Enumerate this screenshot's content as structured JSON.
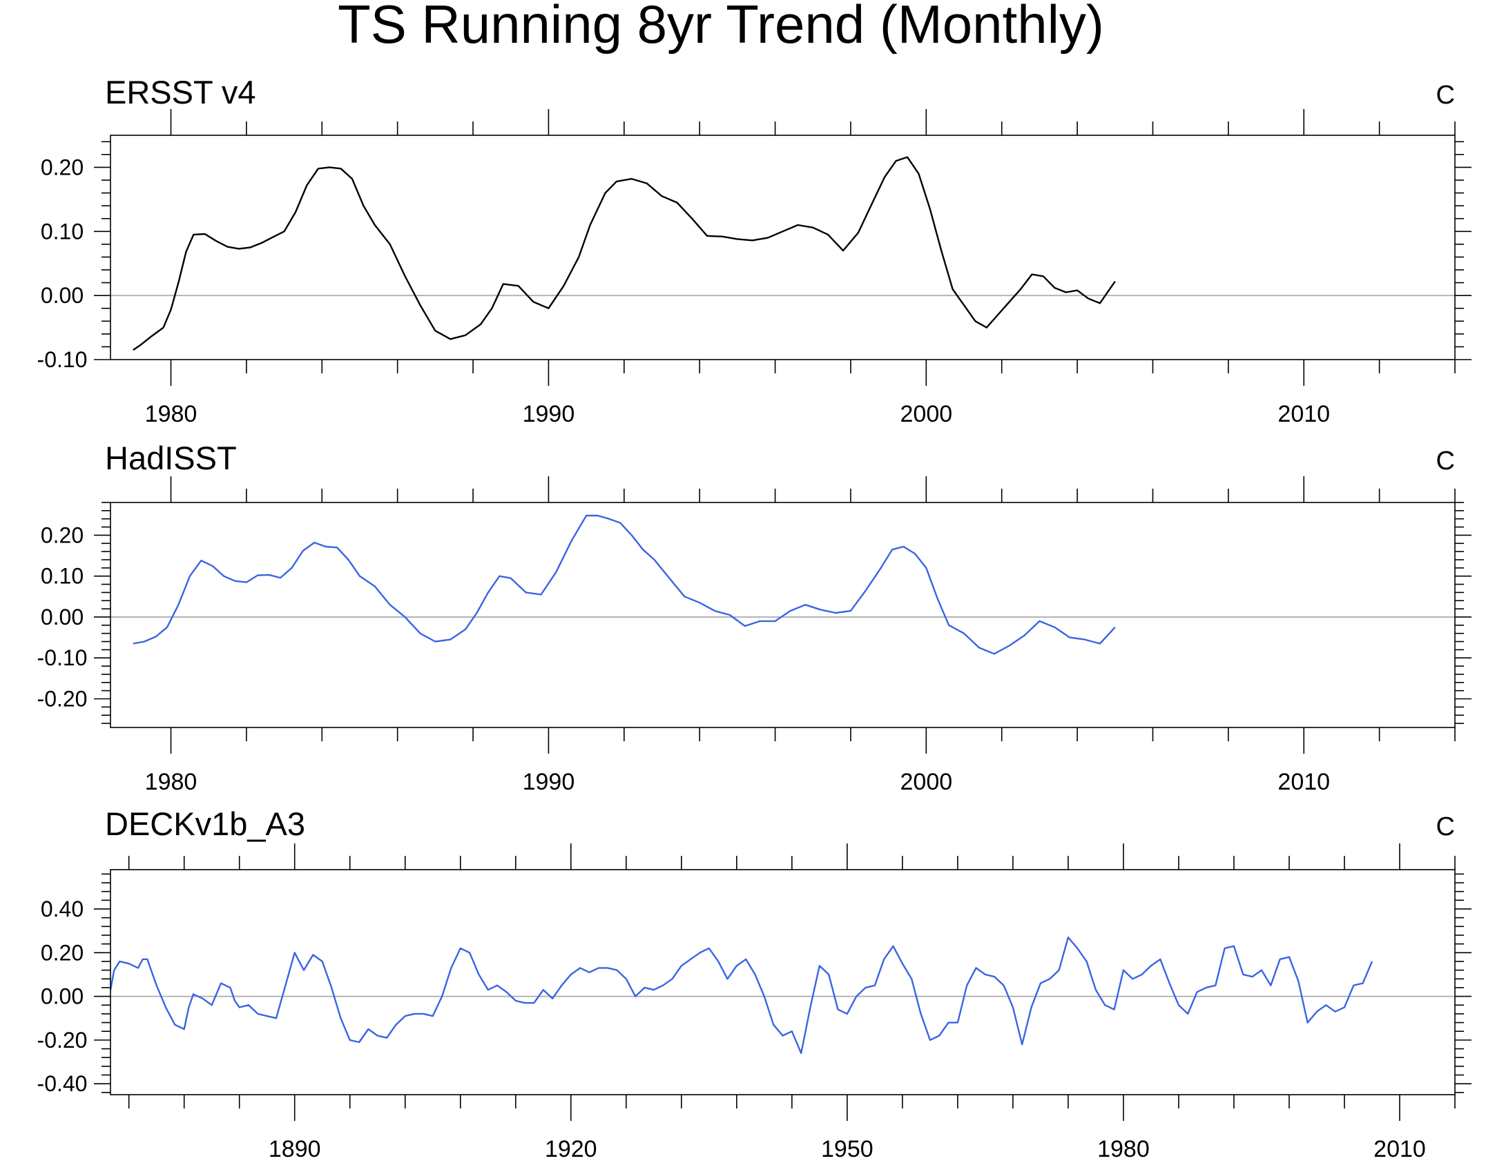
{
  "figure_title": "TS Running 8yr Trend (Monthly)",
  "colors": {
    "black": "#000000",
    "blue": "#3a64e4",
    "zero_line": "#b4b4b4"
  },
  "chart_data": [
    {
      "type": "line",
      "title": "ERSST v4",
      "unit": "C",
      "xlim": [
        1978.4,
        2014.0
      ],
      "ylim": [
        -0.1,
        0.25
      ],
      "yticks": [
        -0.1,
        0.0,
        0.1,
        0.2
      ],
      "ytick_labels": [
        "-0.10",
        "0.00",
        "0.10",
        "0.20"
      ],
      "xticks": [
        1980,
        1990,
        2000,
        2010
      ],
      "xtick_labels": [
        "1980",
        "1990",
        "2000",
        "2010"
      ],
      "zero_line": true,
      "series": [
        {
          "color": "#000000",
          "x": [
            1979.0,
            1979.2,
            1979.5,
            1979.8,
            1980.0,
            1980.2,
            1980.4,
            1980.6,
            1980.9,
            1981.2,
            1981.5,
            1981.8,
            1982.1,
            1982.4,
            1982.7,
            1983.0,
            1983.3,
            1983.6,
            1983.9,
            1984.2,
            1984.5,
            1984.8,
            1985.1,
            1985.4,
            1985.8,
            1986.2,
            1986.6,
            1987.0,
            1987.4,
            1987.8,
            1988.2,
            1988.5,
            1988.8,
            1989.2,
            1989.6,
            1990.0,
            1990.4,
            1990.8,
            1991.1,
            1991.5,
            1991.8,
            1992.2,
            1992.6,
            1993.0,
            1993.4,
            1993.8,
            1994.2,
            1994.6,
            1995.0,
            1995.4,
            1995.8,
            1996.2,
            1996.6,
            1997.0,
            1997.4,
            1997.8,
            1998.2,
            1998.6,
            1998.9,
            1999.2,
            1999.5,
            1999.8,
            2000.1,
            2000.4,
            2000.7,
            2001.0,
            2001.3,
            2001.6,
            2001.9,
            2002.2,
            2002.5,
            2002.8,
            2003.1,
            2003.4,
            2003.7,
            2004.0,
            2004.3,
            2004.6,
            2005.0
          ],
          "y": [
            -0.085,
            -0.077,
            -0.063,
            -0.05,
            -0.022,
            0.02,
            0.068,
            0.095,
            0.096,
            0.085,
            0.076,
            0.073,
            0.075,
            0.082,
            0.091,
            0.1,
            0.13,
            0.172,
            0.198,
            0.2,
            0.198,
            0.182,
            0.14,
            0.11,
            0.08,
            0.03,
            -0.015,
            -0.055,
            -0.068,
            -0.062,
            -0.045,
            -0.02,
            0.018,
            0.015,
            -0.01,
            -0.02,
            0.015,
            0.06,
            0.11,
            0.16,
            0.178,
            0.182,
            0.175,
            0.155,
            0.145,
            0.12,
            0.093,
            0.092,
            0.088,
            0.086,
            0.09,
            0.1,
            0.11,
            0.106,
            0.095,
            0.07,
            0.098,
            0.148,
            0.185,
            0.21,
            0.216,
            0.19,
            0.135,
            0.07,
            0.01,
            -0.015,
            -0.04,
            -0.05,
            -0.03,
            -0.01,
            0.01,
            0.033,
            0.03,
            0.012,
            0.005,
            0.008,
            -0.005,
            -0.012,
            0.022
          ]
        }
      ]
    },
    {
      "type": "line",
      "title": "HadISST",
      "unit": "C",
      "xlim": [
        1978.4,
        2014.0
      ],
      "ylim": [
        -0.27,
        0.28
      ],
      "yticks": [
        -0.2,
        -0.1,
        0.0,
        0.1,
        0.2
      ],
      "ytick_labels": [
        "-0.20",
        "-0.10",
        "0.00",
        "0.10",
        "0.20"
      ],
      "xticks": [
        1980,
        1990,
        2000,
        2010
      ],
      "xtick_labels": [
        "1980",
        "1990",
        "2000",
        "2010"
      ],
      "zero_line": true,
      "series": [
        {
          "color": "#3a64e4",
          "x": [
            1979.0,
            1979.3,
            1979.6,
            1979.9,
            1980.2,
            1980.5,
            1980.8,
            1981.1,
            1981.4,
            1981.7,
            1982.0,
            1982.3,
            1982.6,
            1982.9,
            1983.2,
            1983.5,
            1983.8,
            1984.1,
            1984.4,
            1984.7,
            1985.0,
            1985.4,
            1985.8,
            1986.2,
            1986.6,
            1987.0,
            1987.4,
            1987.8,
            1988.1,
            1988.4,
            1988.7,
            1989.0,
            1989.4,
            1989.8,
            1990.2,
            1990.6,
            1991.0,
            1991.3,
            1991.6,
            1991.9,
            1992.2,
            1992.5,
            1992.8,
            1993.2,
            1993.6,
            1994.0,
            1994.4,
            1994.8,
            1995.2,
            1995.6,
            1996.0,
            1996.4,
            1996.8,
            1997.2,
            1997.6,
            1998.0,
            1998.4,
            1998.8,
            1999.1,
            1999.4,
            1999.7,
            2000.0,
            2000.3,
            2000.6,
            2001.0,
            2001.4,
            2001.8,
            2002.2,
            2002.6,
            2003.0,
            2003.4,
            2003.8,
            2004.2,
            2004.6,
            2005.0
          ],
          "y": [
            -0.065,
            -0.06,
            -0.048,
            -0.025,
            0.03,
            0.1,
            0.138,
            0.125,
            0.1,
            0.088,
            0.085,
            0.102,
            0.103,
            0.096,
            0.12,
            0.162,
            0.182,
            0.172,
            0.17,
            0.14,
            0.1,
            0.075,
            0.03,
            0.0,
            -0.04,
            -0.06,
            -0.055,
            -0.03,
            0.01,
            0.06,
            0.1,
            0.095,
            0.06,
            0.055,
            0.11,
            0.185,
            0.248,
            0.248,
            0.24,
            0.23,
            0.2,
            0.165,
            0.14,
            0.095,
            0.05,
            0.035,
            0.015,
            0.005,
            -0.022,
            -0.01,
            -0.01,
            0.015,
            0.03,
            0.018,
            0.01,
            0.015,
            0.065,
            0.12,
            0.165,
            0.172,
            0.155,
            0.12,
            0.045,
            -0.02,
            -0.04,
            -0.075,
            -0.09,
            -0.07,
            -0.045,
            -0.01,
            -0.025,
            -0.05,
            -0.055,
            -0.065,
            -0.025
          ]
        }
      ]
    },
    {
      "type": "line",
      "title": "DECKv1b_A3",
      "unit": "C",
      "xlim": [
        1870,
        2016
      ],
      "ylim": [
        -0.45,
        0.58
      ],
      "yticks": [
        -0.4,
        -0.2,
        0.0,
        0.2,
        0.4
      ],
      "ytick_labels": [
        "-0.40",
        "-0.20",
        "0.00",
        "0.20",
        "0.40"
      ],
      "xticks": [
        1890,
        1920,
        1950,
        1980,
        2010
      ],
      "xtick_labels": [
        "1890",
        "1920",
        "1950",
        "1980",
        "2010"
      ],
      "zero_line": true,
      "series": [
        {
          "color": "#3a64e4",
          "x": [
            1870.0,
            1870.4,
            1871.0,
            1872.0,
            1873.0,
            1873.5,
            1874.0,
            1875.0,
            1876.0,
            1877.0,
            1878.0,
            1878.5,
            1879.0,
            1880.0,
            1881.0,
            1882.0,
            1883.0,
            1883.5,
            1884.0,
            1885.0,
            1886.0,
            1887.0,
            1888.0,
            1889.0,
            1890.0,
            1891.0,
            1892.0,
            1893.0,
            1894.0,
            1895.0,
            1896.0,
            1897.0,
            1898.0,
            1899.0,
            1900.0,
            1901.0,
            1902.0,
            1903.0,
            1904.0,
            1905.0,
            1906.0,
            1907.0,
            1908.0,
            1909.0,
            1910.0,
            1911.0,
            1912.0,
            1913.0,
            1914.0,
            1915.0,
            1916.0,
            1917.0,
            1918.0,
            1919.0,
            1920.0,
            1921.0,
            1922.0,
            1923.0,
            1924.0,
            1925.0,
            1926.0,
            1927.0,
            1928.0,
            1929.0,
            1930.0,
            1931.0,
            1932.0,
            1933.0,
            1934.0,
            1935.0,
            1936.0,
            1937.0,
            1938.0,
            1939.0,
            1940.0,
            1941.0,
            1942.0,
            1943.0,
            1944.0,
            1945.0,
            1946.0,
            1947.0,
            1948.0,
            1949.0,
            1950.0,
            1951.0,
            1952.0,
            1953.0,
            1954.0,
            1955.0,
            1956.0,
            1957.0,
            1958.0,
            1959.0,
            1960.0,
            1961.0,
            1962.0,
            1963.0,
            1964.0,
            1965.0,
            1966.0,
            1967.0,
            1968.0,
            1969.0,
            1970.0,
            1971.0,
            1972.0,
            1973.0,
            1974.0,
            1975.0,
            1976.0,
            1977.0,
            1978.0,
            1979.0,
            1980.0,
            1981.0,
            1982.0,
            1983.0,
            1984.0,
            1985.0,
            1986.0,
            1987.0,
            1988.0,
            1989.0,
            1990.0,
            1991.0,
            1992.0,
            1993.0,
            1994.0,
            1995.0,
            1996.0,
            1997.0,
            1998.0,
            1999.0,
            2000.0,
            2001.0,
            2002.0,
            2003.0,
            2004.0,
            2005.0,
            2006.0,
            2007.0
          ],
          "y": [
            0.03,
            0.12,
            0.16,
            0.15,
            0.13,
            0.17,
            0.17,
            0.05,
            -0.05,
            -0.13,
            -0.15,
            -0.05,
            0.01,
            -0.01,
            -0.04,
            0.06,
            0.04,
            -0.02,
            -0.05,
            -0.04,
            -0.08,
            -0.09,
            -0.1,
            0.05,
            0.2,
            0.12,
            0.19,
            0.16,
            0.04,
            -0.1,
            -0.2,
            -0.21,
            -0.15,
            -0.18,
            -0.19,
            -0.13,
            -0.09,
            -0.08,
            -0.08,
            -0.09,
            0.0,
            0.13,
            0.22,
            0.2,
            0.1,
            0.03,
            0.05,
            0.02,
            -0.02,
            -0.03,
            -0.03,
            0.03,
            -0.01,
            0.05,
            0.1,
            0.13,
            0.11,
            0.13,
            0.13,
            0.12,
            0.08,
            0.0,
            0.04,
            0.03,
            0.05,
            0.08,
            0.14,
            0.17,
            0.2,
            0.22,
            0.16,
            0.08,
            0.14,
            0.17,
            0.1,
            0.0,
            -0.13,
            -0.18,
            -0.16,
            -0.26,
            -0.05,
            0.14,
            0.1,
            -0.06,
            -0.08,
            0.0,
            0.04,
            0.05,
            0.17,
            0.23,
            0.15,
            0.08,
            -0.08,
            -0.2,
            -0.18,
            -0.12,
            -0.12,
            0.05,
            0.13,
            0.1,
            0.09,
            0.05,
            -0.05,
            -0.22,
            -0.05,
            0.06,
            0.08,
            0.12,
            0.27,
            0.22,
            0.16,
            0.03,
            -0.04,
            -0.06,
            0.12,
            0.08,
            0.1,
            0.14,
            0.17,
            0.06,
            -0.04,
            -0.08,
            0.02,
            0.04,
            0.05,
            0.22,
            0.23,
            0.1,
            0.09,
            0.12,
            0.05,
            0.17,
            0.18,
            0.07,
            -0.12,
            -0.07,
            -0.04,
            -0.07,
            -0.05,
            0.05,
            0.06,
            0.16
          ]
        }
      ]
    }
  ]
}
